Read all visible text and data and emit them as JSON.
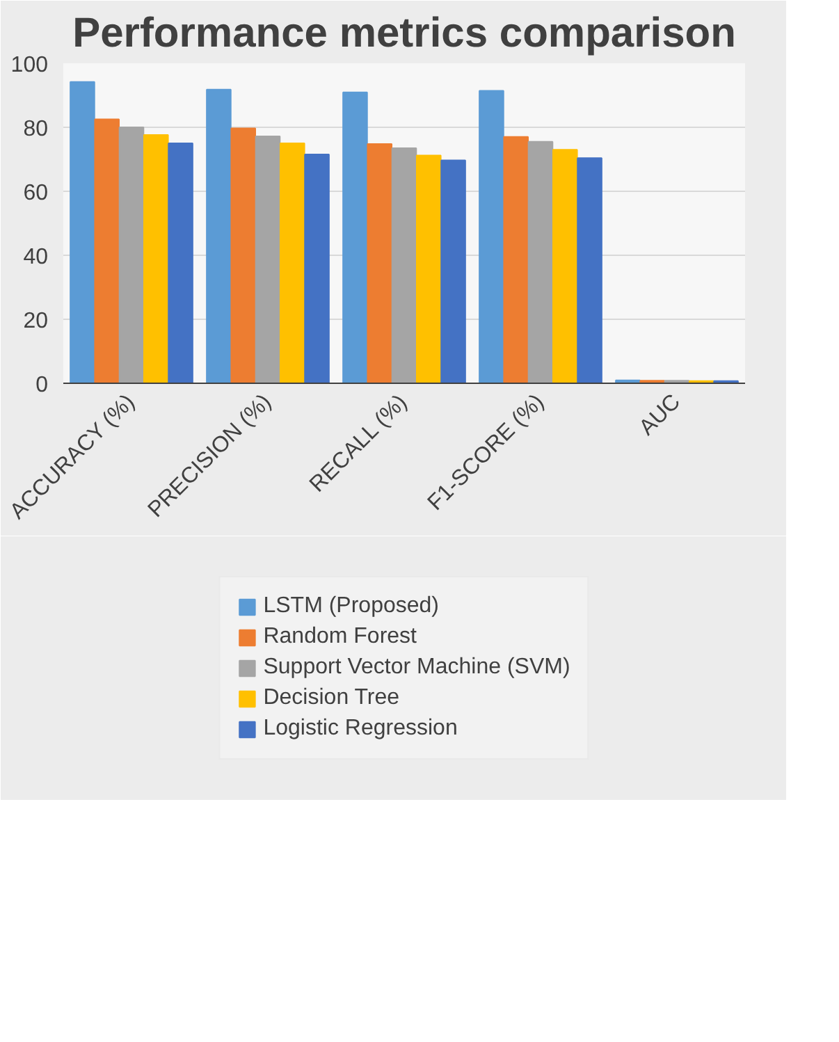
{
  "chart_data": {
    "type": "bar",
    "title": "Performance metrics comparison",
    "categories": [
      "ACCURACY (%)",
      "PRECISION (%)",
      "RECALL (%)",
      "F1-SCORE (%)",
      "AUC"
    ],
    "series": [
      {
        "name": "LSTM (Proposed)",
        "color": "#5b9bd5",
        "values": [
          94.2,
          91.8,
          90.9,
          91.4,
          0.9
        ]
      },
      {
        "name": "Random Forest",
        "color": "#ed7d31",
        "values": [
          82.5,
          79.7,
          74.8,
          77,
          0.8
        ]
      },
      {
        "name": "Support Vector Machine (SVM)",
        "color": "#a5a5a5",
        "values": [
          80,
          77.2,
          73.5,
          75.5,
          0.8
        ]
      },
      {
        "name": "Decision Tree",
        "color": "#ffc000",
        "values": [
          77.6,
          75,
          71.2,
          73,
          0.7
        ]
      },
      {
        "name": "Logistic Regression",
        "color": "#4472c4",
        "values": [
          75,
          71.5,
          69.7,
          70.4,
          0.7
        ]
      }
    ],
    "ylim": [
      0,
      100
    ],
    "yticks": [
      0,
      20,
      40,
      60,
      80,
      100
    ],
    "grid": "y",
    "legend": "bottom"
  }
}
